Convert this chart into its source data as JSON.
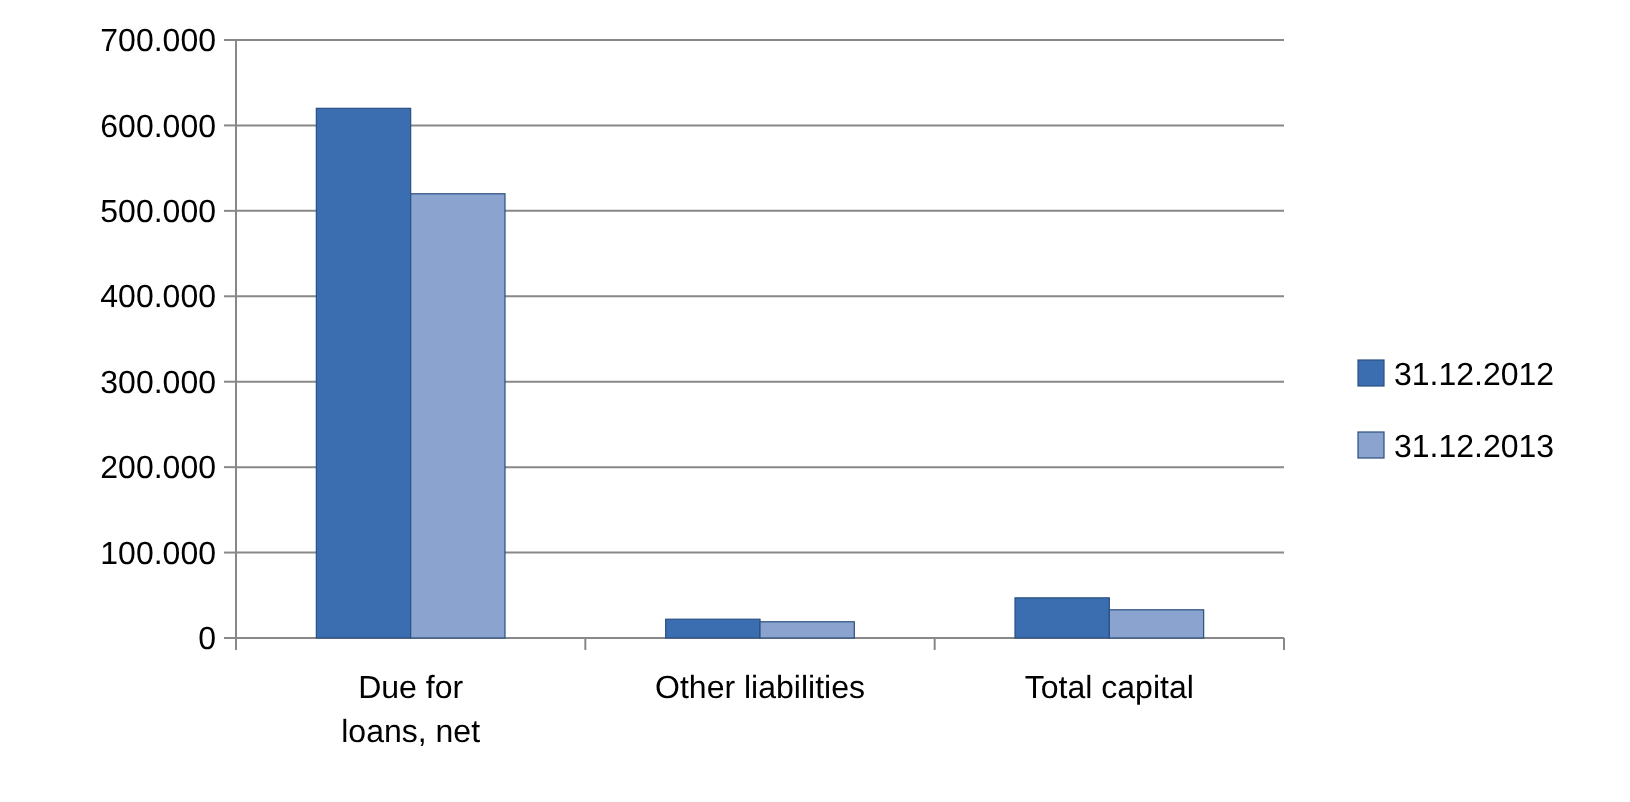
{
  "chart_data": {
    "type": "bar",
    "categories": [
      "Due for loans, net",
      "Other liabilities",
      "Total capital"
    ],
    "series": [
      {
        "name": "31.12.2012",
        "color": "#3a6eb0",
        "values": [
          620000,
          22000,
          47000
        ]
      },
      {
        "name": "31.12.2013",
        "color": "#8aa3cf",
        "values": [
          520000,
          19000,
          33000
        ]
      }
    ],
    "ylim": [
      0,
      700000
    ],
    "yticks": [
      0,
      {
        "value": 100000,
        "label": "100.000"
      },
      {
        "value": 200000,
        "label": "200.000"
      },
      {
        "value": 300000,
        "label": "300.000"
      },
      {
        "value": 400000,
        "label": "400.000"
      },
      {
        "value": 500000,
        "label": "500.000"
      },
      {
        "value": 600000,
        "label": "600.000"
      },
      {
        "value": 700000,
        "label": "700.000"
      }
    ],
    "grid": "y",
    "legend": "right"
  }
}
